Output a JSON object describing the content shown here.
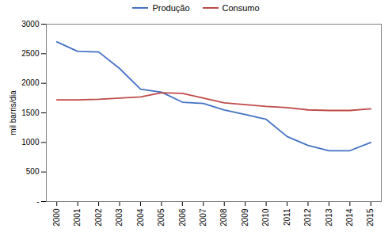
{
  "chart_data": {
    "type": "line",
    "x": [
      2000,
      2001,
      2002,
      2003,
      2004,
      2005,
      2006,
      2007,
      2008,
      2009,
      2010,
      2011,
      2012,
      2013,
      2014,
      2015
    ],
    "series": [
      {
        "name": "Produção",
        "color": "#4472C4",
        "values": [
          2700,
          2540,
          2530,
          2250,
          1900,
          1850,
          1680,
          1660,
          1550,
          1470,
          1390,
          1100,
          950,
          860,
          860,
          1000
        ]
      },
      {
        "name": "Consumo",
        "color": "#BE4B48",
        "values": [
          1720,
          1720,
          1730,
          1750,
          1770,
          1840,
          1830,
          1750,
          1670,
          1640,
          1610,
          1590,
          1550,
          1540,
          1540,
          1570
        ]
      }
    ],
    "ylabel": "mil barris/dia",
    "xlim": [
      1999.5,
      2015.5
    ],
    "xticks": [
      2000,
      2001,
      2002,
      2003,
      2004,
      2005,
      2006,
      2007,
      2008,
      2009,
      2010,
      2011,
      2012,
      2013,
      2014,
      2015
    ],
    "ylim": [
      0,
      3000
    ],
    "yticks": [
      {
        "value": 0,
        "label": "-"
      },
      500,
      1000,
      1500,
      2000,
      2500,
      3000
    ],
    "grid": false,
    "legend": "top"
  }
}
